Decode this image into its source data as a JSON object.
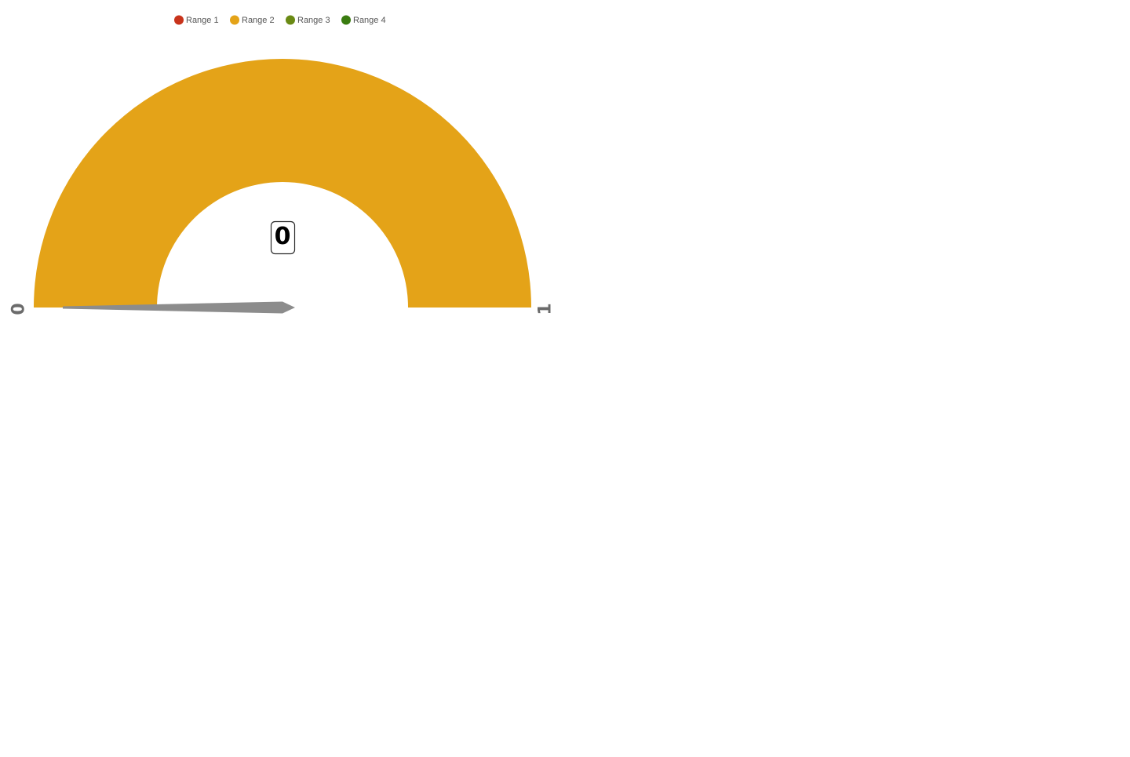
{
  "chart_data": {
    "type": "gauge",
    "min": 0,
    "max": 1,
    "value": 0,
    "scale_labels": {
      "min_label": "0",
      "max_label": "1"
    },
    "value_label": "0",
    "legend": {
      "placement": "top",
      "items": [
        {
          "name": "Range 1",
          "color": "#c8331b"
        },
        {
          "name": "Range 2",
          "color": "#e4a318"
        },
        {
          "name": "Range 3",
          "color": "#6a8a14"
        },
        {
          "name": "Range 4",
          "color": "#3a7c10"
        }
      ]
    },
    "visible_range": {
      "name": "Range 2",
      "from": 0,
      "to": 1,
      "color": "#e4a318"
    },
    "needle_color": "#8c8c8c"
  }
}
